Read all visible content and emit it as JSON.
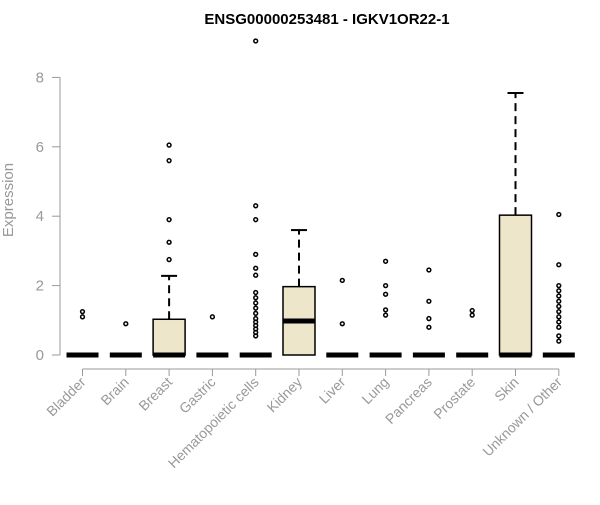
{
  "chart_data": {
    "type": "box",
    "title": "ENSG00000253481 - IGKV1OR22-1",
    "xlabel": "",
    "ylabel": "Expression",
    "ylim": [
      0,
      9.3
    ],
    "yticks": [
      0,
      2,
      4,
      6,
      8
    ],
    "grid": false,
    "colors": {
      "box_fill": "#ede6cb",
      "stroke": "#000000",
      "axis": "#999999",
      "title": "#000000"
    },
    "categories": [
      "Bladder",
      "Brain",
      "Breast",
      "Gastric",
      "Hematopoietic cells",
      "Kidney",
      "Liver",
      "Lung",
      "Pancreas",
      "Prostate",
      "Skin",
      "Unknown / Other"
    ],
    "boxes": [
      {
        "category": "Bladder",
        "min": 0,
        "q1": 0,
        "median": 0,
        "q3": 0,
        "max": 0,
        "outliers": [
          1.1,
          1.25
        ]
      },
      {
        "category": "Brain",
        "min": 0,
        "q1": 0,
        "median": 0,
        "q3": 0,
        "max": 0,
        "outliers": [
          0.9
        ]
      },
      {
        "category": "Breast",
        "min": 0,
        "q1": 0,
        "median": 0,
        "q3": 1.03,
        "max": 2.28,
        "outliers": [
          2.75,
          3.25,
          3.9,
          5.6,
          6.05
        ]
      },
      {
        "category": "Gastric",
        "min": 0,
        "q1": 0,
        "median": 0,
        "q3": 0,
        "max": 0,
        "outliers": [
          1.1
        ]
      },
      {
        "category": "Hematopoietic cells",
        "min": 0,
        "q1": 0,
        "median": 0,
        "q3": 0,
        "max": 0,
        "outliers": [
          0.55,
          0.65,
          0.75,
          0.85,
          0.95,
          1.05,
          1.2,
          1.35,
          1.5,
          1.65,
          1.8,
          2.3,
          2.5,
          2.9,
          3.9,
          4.3,
          9.05
        ]
      },
      {
        "category": "Kidney",
        "min": 0,
        "q1": 0,
        "median": 0.98,
        "q3": 1.97,
        "max": 3.6,
        "outliers": []
      },
      {
        "category": "Liver",
        "min": 0,
        "q1": 0,
        "median": 0,
        "q3": 0,
        "max": 0,
        "outliers": [
          0.9,
          2.15
        ]
      },
      {
        "category": "Lung",
        "min": 0,
        "q1": 0,
        "median": 0,
        "q3": 0,
        "max": 0,
        "outliers": [
          1.15,
          1.3,
          1.75,
          2.0,
          2.7
        ]
      },
      {
        "category": "Pancreas",
        "min": 0,
        "q1": 0,
        "median": 0,
        "q3": 0,
        "max": 0,
        "outliers": [
          0.8,
          1.05,
          1.55,
          2.45
        ]
      },
      {
        "category": "Prostate",
        "min": 0,
        "q1": 0,
        "median": 0,
        "q3": 0,
        "max": 0,
        "outliers": [
          1.15,
          1.28
        ]
      },
      {
        "category": "Skin",
        "min": 0,
        "q1": 0,
        "median": 0,
        "q3": 4.03,
        "max": 7.55,
        "outliers": []
      },
      {
        "category": "Unknown / Other",
        "min": 0,
        "q1": 0,
        "median": 0,
        "q3": 0,
        "max": 0,
        "outliers": [
          0.4,
          0.55,
          0.8,
          0.95,
          1.1,
          1.25,
          1.4,
          1.55,
          1.7,
          1.85,
          2.0,
          2.6,
          4.05
        ]
      }
    ]
  }
}
